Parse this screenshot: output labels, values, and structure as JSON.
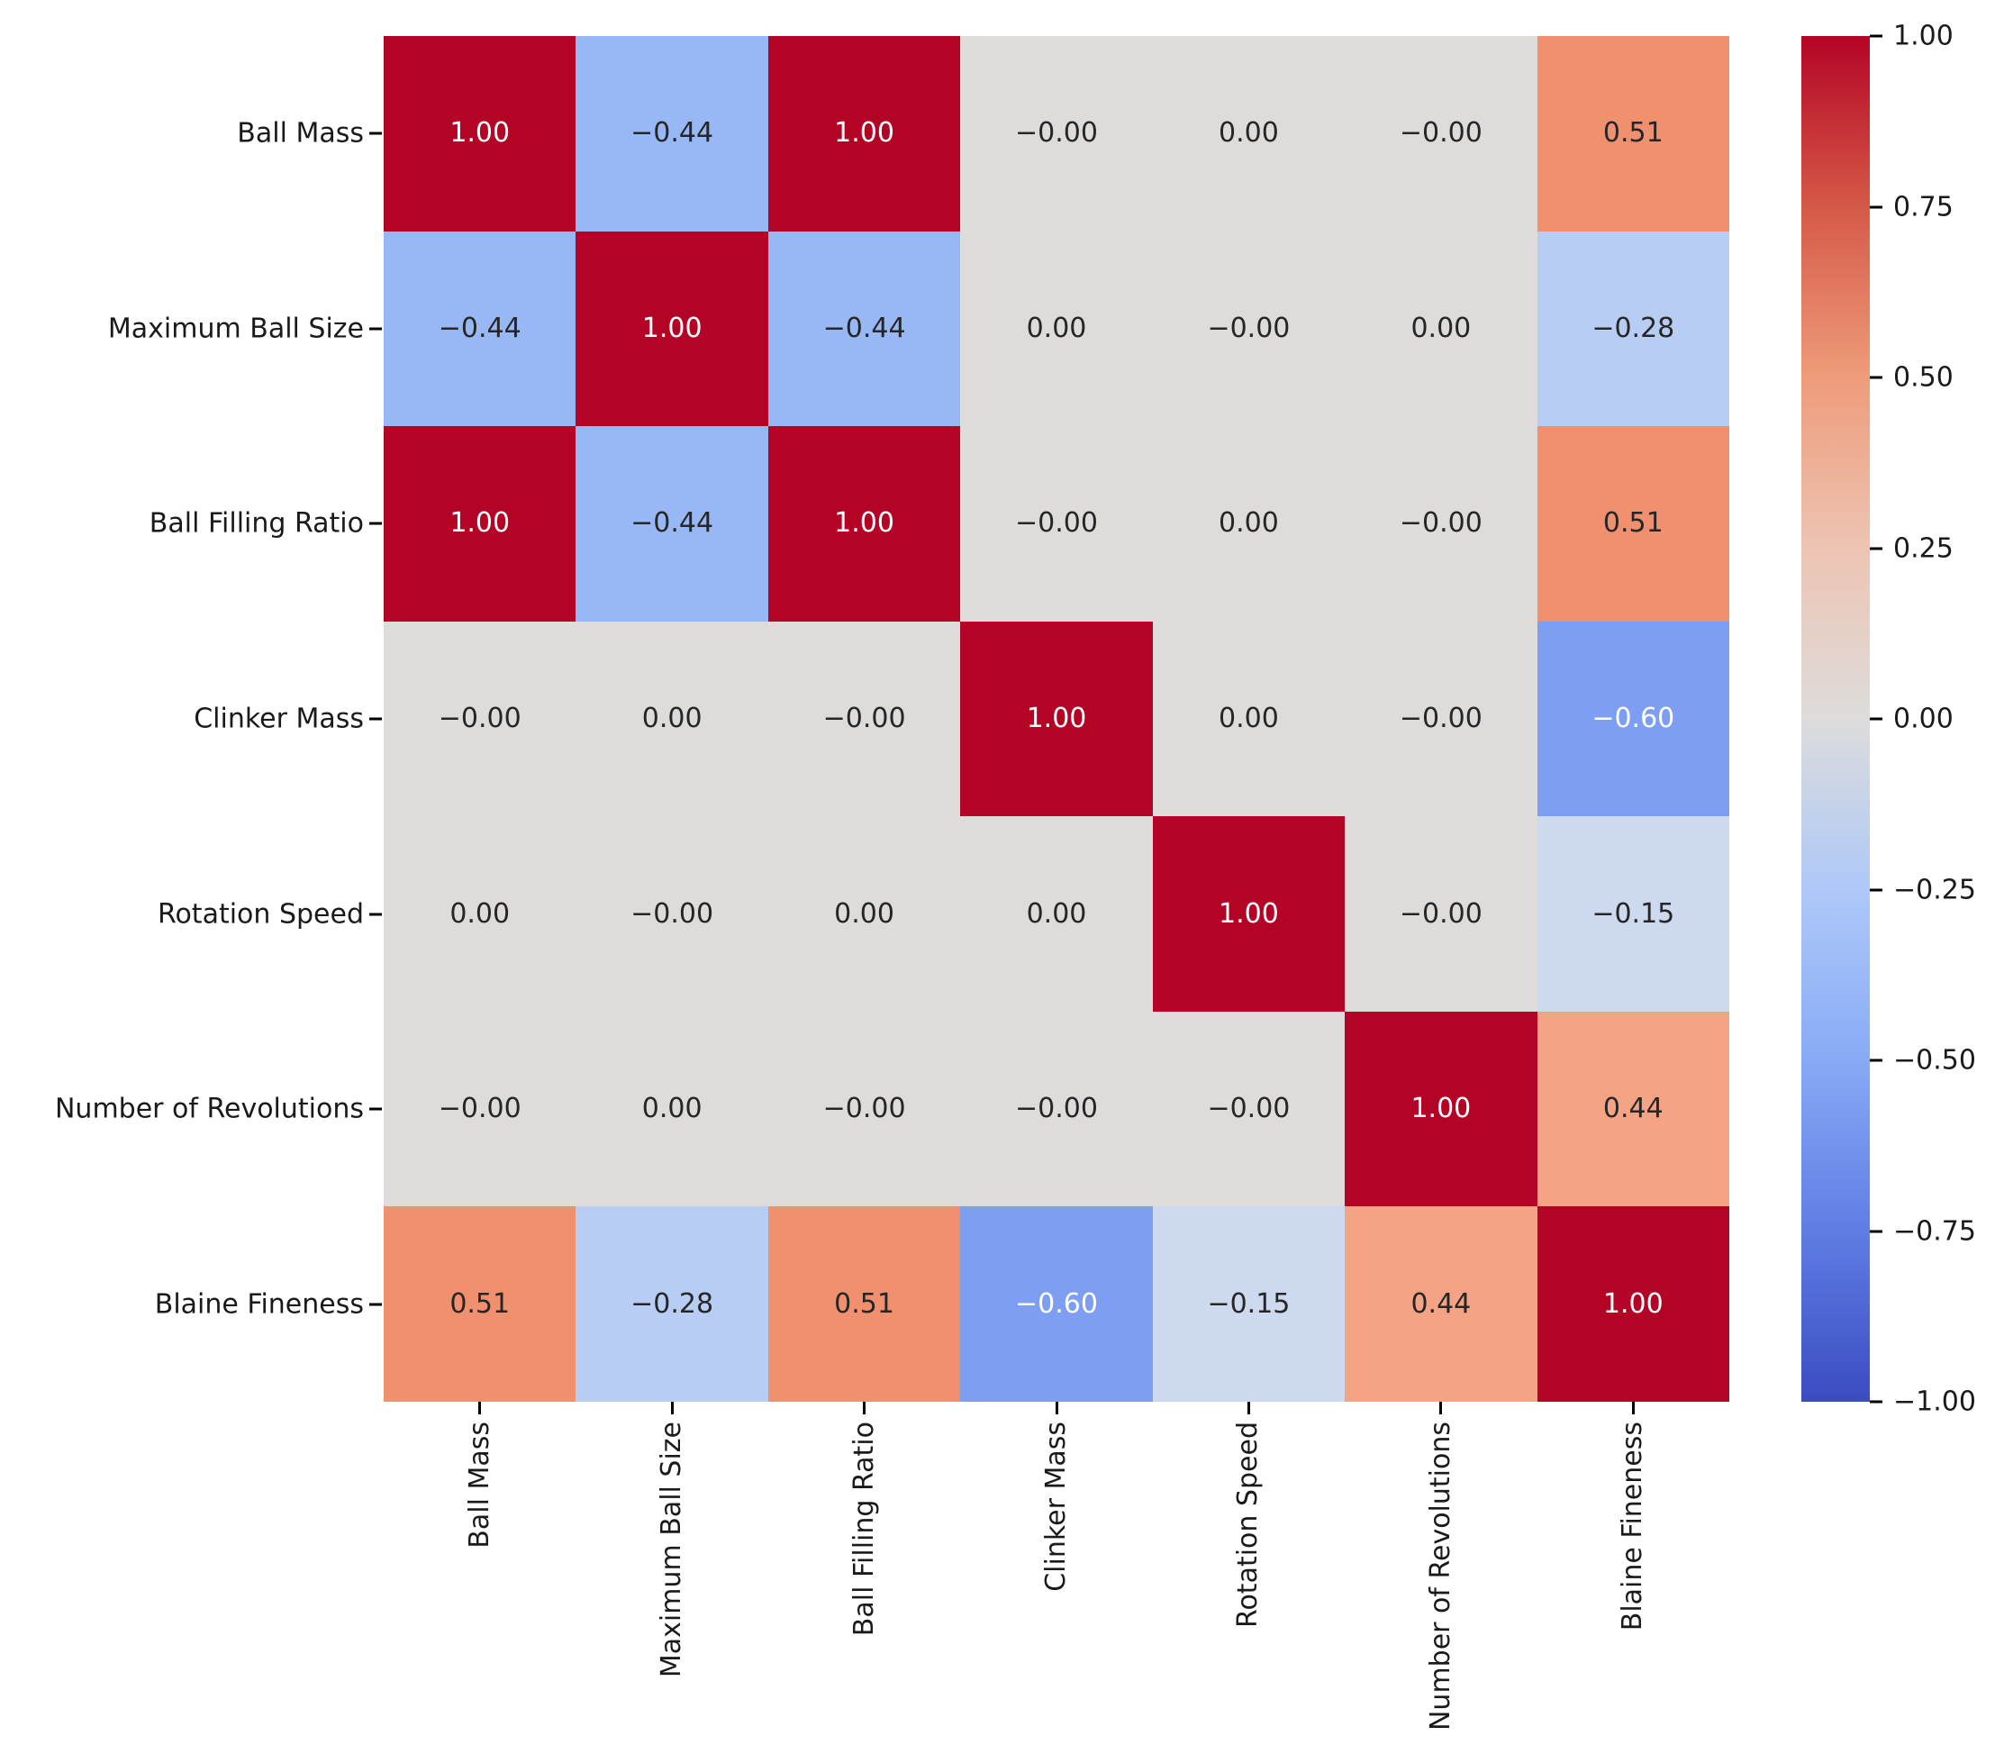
{
  "chart_data": {
    "type": "heatmap",
    "title": "",
    "variables": [
      "Ball Mass",
      "Maximum Ball Size",
      "Ball Filling Ratio",
      "Clinker Mass",
      "Rotation Speed",
      "Number of Revolutions",
      "Blaine Fineness"
    ],
    "y_tick_labels": [
      "Ball Mass",
      "Maximum Ball Size",
      "Ball Filling Ratio",
      "Clinker Mass",
      "Rotation Speed",
      "Number of Revolutions",
      "Blaine Fineness"
    ],
    "x_tick_labels": [
      "Ball Mass",
      "Maximum Ball Size",
      "Ball Filling Ratio",
      "Clinker Mass",
      "Rotation Speed",
      "Number of Revolutions",
      "Blaine Fineness"
    ],
    "vmin": -1.0,
    "vmax": 1.0,
    "matrix_values": [
      [
        1.0,
        -0.44,
        1.0,
        -0.0,
        0.0,
        -0.0,
        0.51
      ],
      [
        -0.44,
        1.0,
        -0.44,
        0.0,
        -0.0,
        0.0,
        -0.28
      ],
      [
        1.0,
        -0.44,
        1.0,
        -0.0,
        0.0,
        -0.0,
        0.51
      ],
      [
        -0.0,
        0.0,
        -0.0,
        1.0,
        0.0,
        -0.0,
        -0.6
      ],
      [
        0.0,
        -0.0,
        0.0,
        0.0,
        1.0,
        -0.0,
        -0.15
      ],
      [
        -0.0,
        0.0,
        -0.0,
        -0.0,
        -0.0,
        1.0,
        0.44
      ],
      [
        0.51,
        -0.28,
        0.51,
        -0.6,
        -0.15,
        0.44,
        1.0
      ]
    ],
    "matrix_labels": [
      [
        "1.00",
        "−0.44",
        "1.00",
        "−0.00",
        "0.00",
        "−0.00",
        "0.51"
      ],
      [
        "−0.44",
        "1.00",
        "−0.44",
        "0.00",
        "−0.00",
        "0.00",
        "−0.28"
      ],
      [
        "1.00",
        "−0.44",
        "1.00",
        "−0.00",
        "0.00",
        "−0.00",
        "0.51"
      ],
      [
        "−0.00",
        "0.00",
        "−0.00",
        "1.00",
        "0.00",
        "−0.00",
        "−0.60"
      ],
      [
        "0.00",
        "−0.00",
        "0.00",
        "0.00",
        "1.00",
        "−0.00",
        "−0.15"
      ],
      [
        "−0.00",
        "0.00",
        "−0.00",
        "−0.00",
        "−0.00",
        "1.00",
        "0.44"
      ],
      [
        "0.51",
        "−0.28",
        "0.51",
        "−0.60",
        "−0.15",
        "0.44",
        "1.00"
      ]
    ],
    "colorbar_tick_labels": [
      "1.00",
      "0.75",
      "0.50",
      "0.25",
      "0.00",
      "−0.25",
      "−0.50",
      "−0.75",
      "−1.00"
    ],
    "colors": {
      "value_colors": {
        "1.00": "#b40426",
        "0.51": "#f0906f",
        "0.44": "#f4a385",
        "0.00": "#dddcdb",
        "-0.15": "#cdd9ee",
        "-0.28": "#b7cdf4",
        "-0.44": "#98b8f5",
        "-0.60": "#7d9ef1"
      },
      "colorbar_gradient": [
        "#b40426",
        "#d55947",
        "#ee9c7a",
        "#edc4b3",
        "#dddcdb",
        "#aec8f8",
        "#87aaf5",
        "#5f7de4",
        "#3b4cc0"
      ],
      "annotation_dark": "#262626",
      "annotation_light": "#ffffff",
      "tick_color": "#000000",
      "label_color": "#1a1a1a",
      "background": "#ffffff"
    }
  }
}
